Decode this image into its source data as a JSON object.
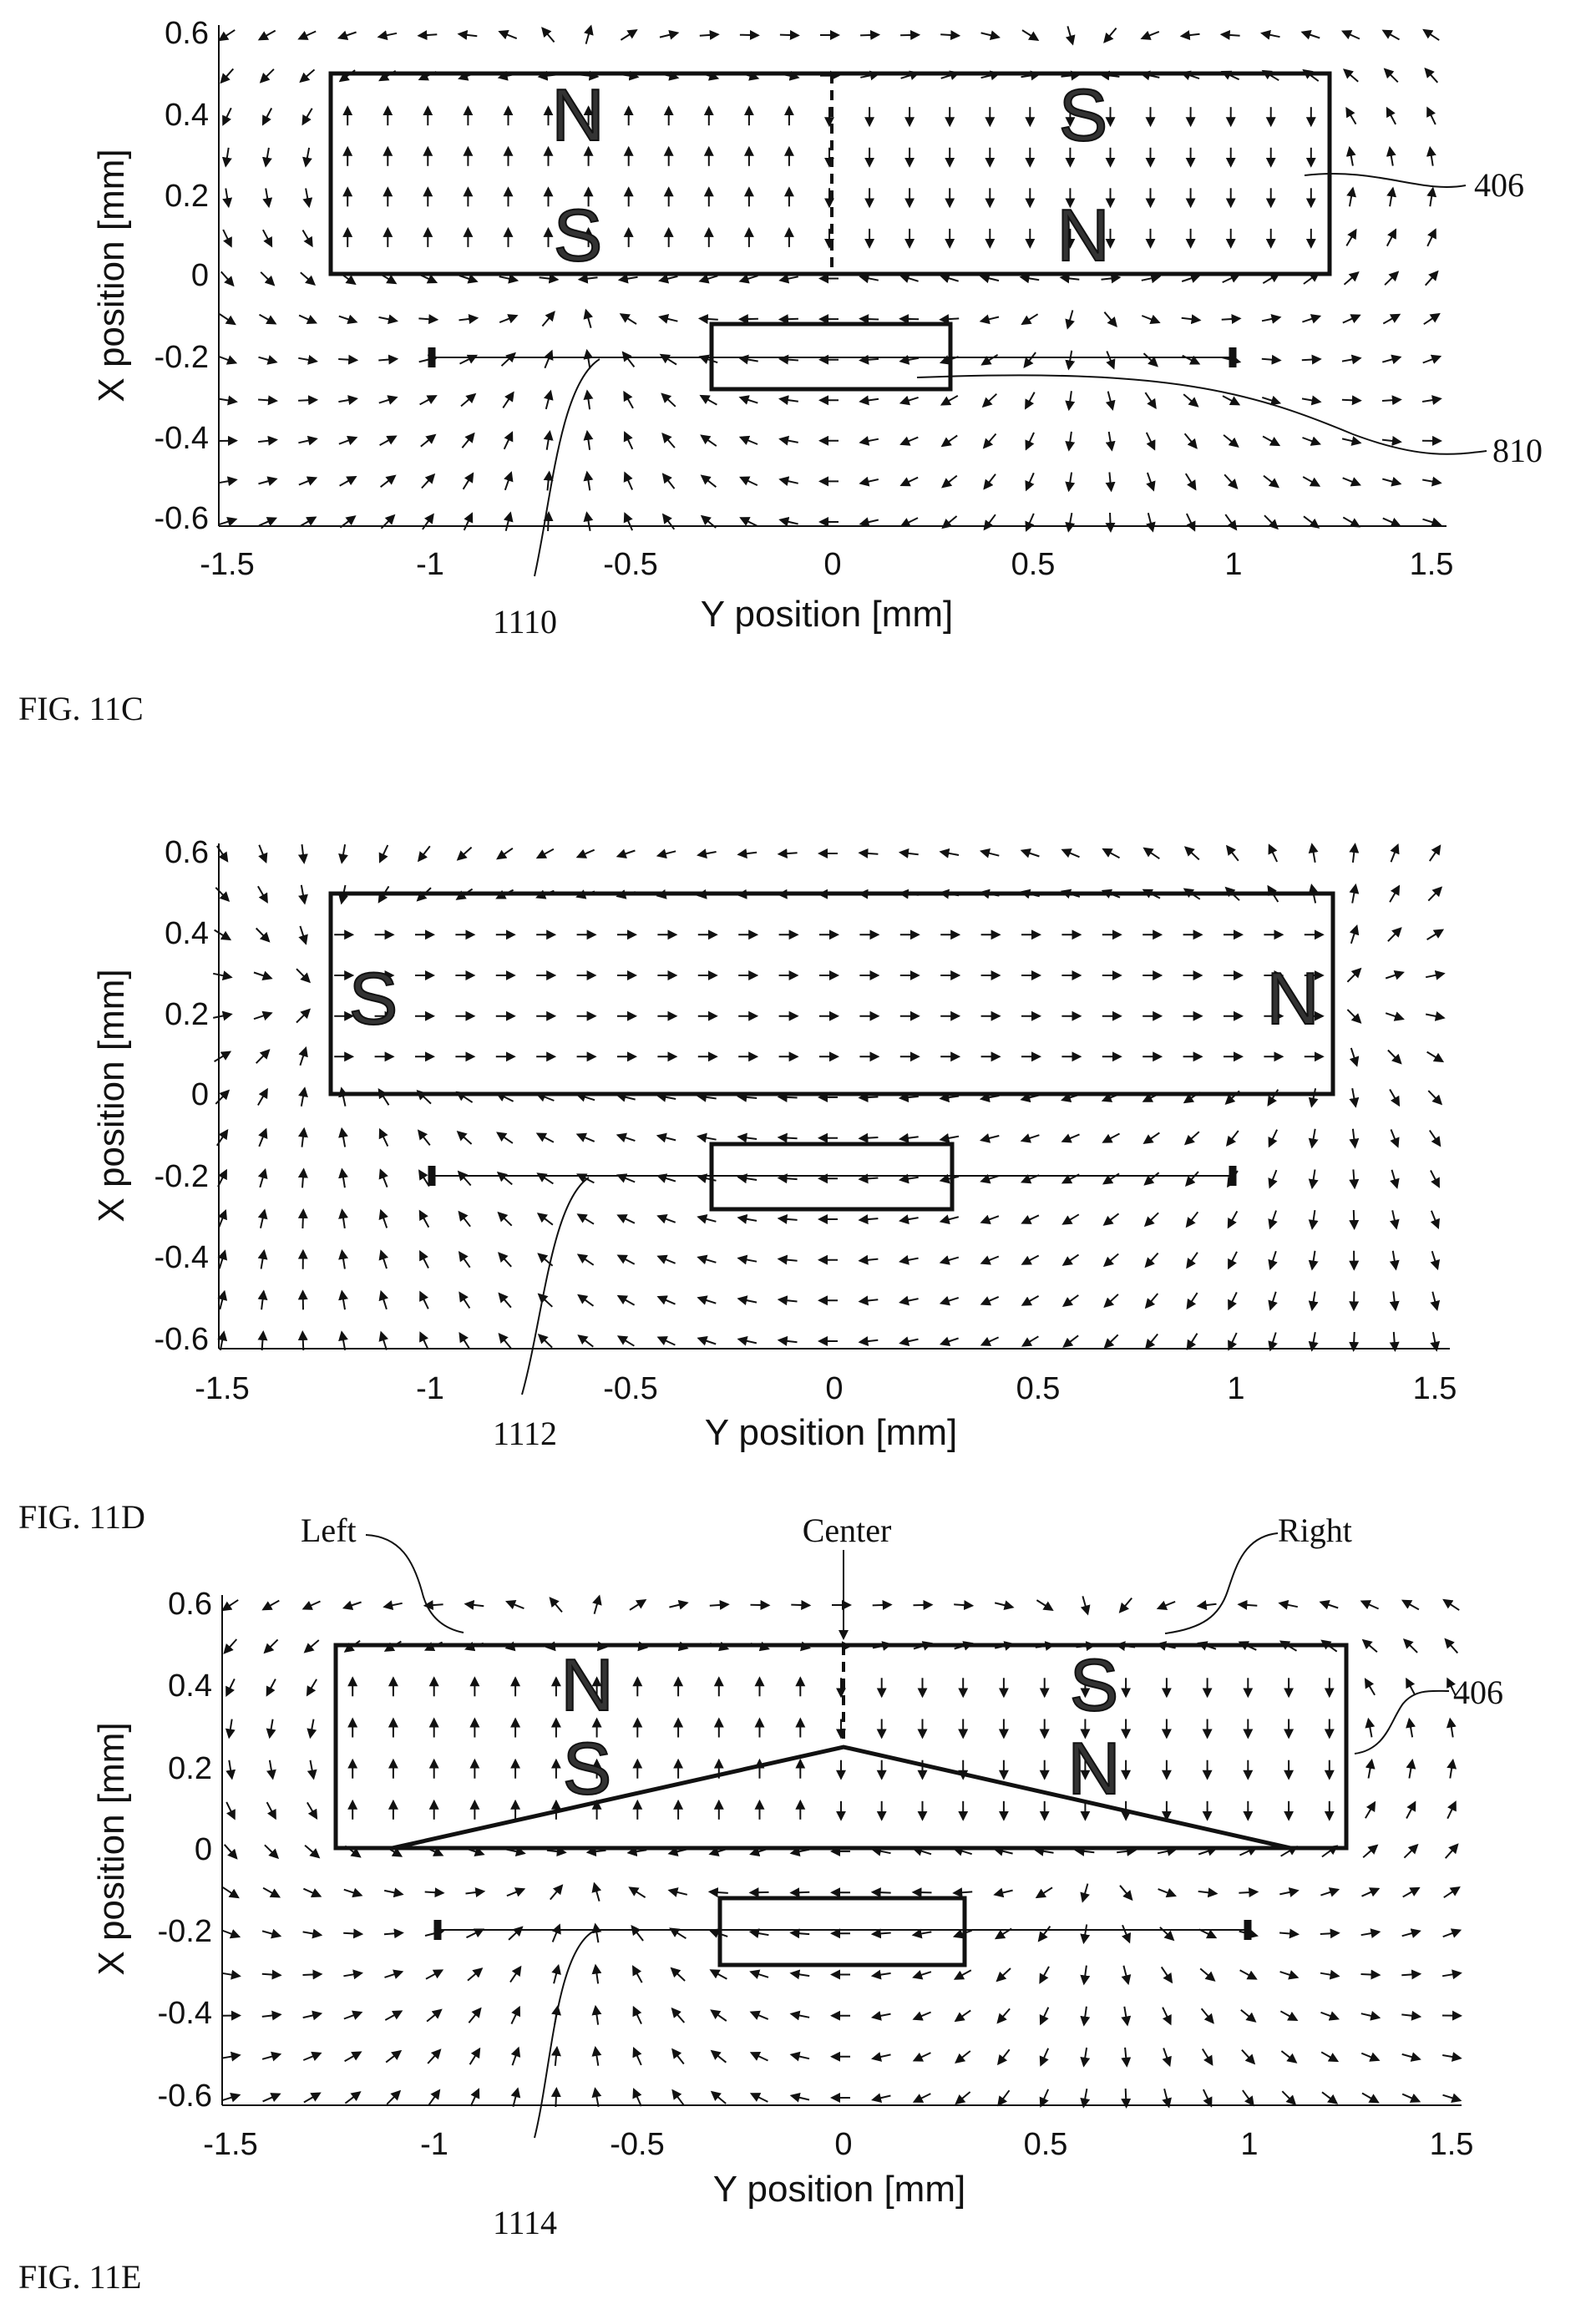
{
  "figures": [
    {
      "id": "11C",
      "caption": "FIG. 11C",
      "xlabel": "Y position [mm]",
      "ylabel": "X position [mm]",
      "xticks": [
        "-1.5",
        "-1",
        "-0.5",
        "0",
        "0.5",
        "1",
        "1.5"
      ],
      "yticks": [
        "0.6",
        "0.4",
        "0.2",
        "0",
        "-0.2",
        "-0.4",
        "-0.6"
      ],
      "poles": [
        "N",
        "S",
        "S",
        "N"
      ],
      "refs": [
        "406",
        "810",
        "1110"
      ],
      "field": "split"
    },
    {
      "id": "11D",
      "caption": "FIG. 11D",
      "xlabel": "Y position [mm]",
      "ylabel": "X position [mm]",
      "xticks": [
        "-1.5",
        "-1",
        "-0.5",
        "0",
        "0.5",
        "1",
        "1.5"
      ],
      "yticks": [
        "0.6",
        "0.4",
        "0.2",
        "0",
        "-0.2",
        "-0.4",
        "-0.6"
      ],
      "poles": [
        "S",
        "N"
      ],
      "refs": [
        "1112"
      ],
      "field": "dipole"
    },
    {
      "id": "11E",
      "caption": "FIG. 11E",
      "xlabel": "Y position [mm]",
      "ylabel": "X position [mm]",
      "xticks": [
        "-1.5",
        "-1",
        "-0.5",
        "0",
        "0.5",
        "1",
        "1.5"
      ],
      "yticks": [
        "0.6",
        "0.4",
        "0.2",
        "0",
        "-0.2",
        "-0.4",
        "-0.6"
      ],
      "poles": [
        "N",
        "S",
        "S",
        "N"
      ],
      "refs": [
        "406",
        "1114"
      ],
      "callouts": [
        "Left",
        "Center",
        "Right"
      ],
      "field": "split"
    }
  ],
  "chart_data": [
    {
      "type": "quiver",
      "xlabel": "Y position [mm]",
      "ylabel": "X position [mm]",
      "xlim": [
        -1.5,
        1.5
      ],
      "ylim": [
        -0.6,
        0.6
      ],
      "magnet": {
        "y_range": [
          -1.25,
          1.25
        ],
        "x_range": [
          0,
          0.5
        ],
        "divided_at_y": 0
      },
      "sensor_box": {
        "y_range": [
          -0.3,
          0.3
        ],
        "x_range": [
          -0.28,
          -0.12
        ]
      },
      "track": {
        "y_range": [
          -1,
          1
        ],
        "x": -0.2
      }
    },
    {
      "type": "quiver",
      "xlabel": "Y position [mm]",
      "ylabel": "X position [mm]",
      "xlim": [
        -1.5,
        1.5
      ],
      "ylim": [
        -0.6,
        0.6
      ],
      "magnet": {
        "y_range": [
          -1.25,
          1.25
        ],
        "x_range": [
          0,
          0.5
        ]
      },
      "sensor_box": {
        "y_range": [
          -0.3,
          0.3
        ],
        "x_range": [
          -0.28,
          -0.12
        ]
      },
      "track": {
        "y_range": [
          -1,
          1
        ],
        "x": -0.2
      }
    },
    {
      "type": "quiver",
      "xlabel": "Y position [mm]",
      "ylabel": "X position [mm]",
      "xlim": [
        -1.5,
        1.5
      ],
      "ylim": [
        -0.6,
        0.6
      ],
      "magnet": {
        "y_range": [
          -1.25,
          1.25
        ],
        "x_range": [
          0,
          0.5
        ],
        "divided_at_y": 0,
        "v_boundary": [
          [
            -1.1,
            0
          ],
          [
            0,
            0.25
          ],
          [
            1.1,
            0
          ]
        ]
      },
      "sensor_box": {
        "y_range": [
          -0.3,
          0.3
        ],
        "x_range": [
          -0.28,
          -0.12
        ]
      },
      "track": {
        "y_range": [
          -1,
          1
        ],
        "x": -0.2
      }
    }
  ]
}
